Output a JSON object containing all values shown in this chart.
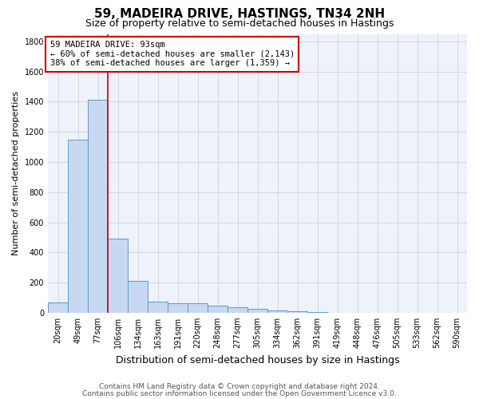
{
  "title": "59, MADEIRA DRIVE, HASTINGS, TN34 2NH",
  "subtitle": "Size of property relative to semi-detached houses in Hastings",
  "xlabel": "Distribution of semi-detached houses by size in Hastings",
  "ylabel": "Number of semi-detached properties",
  "categories": [
    "20sqm",
    "49sqm",
    "77sqm",
    "106sqm",
    "134sqm",
    "163sqm",
    "191sqm",
    "220sqm",
    "248sqm",
    "277sqm",
    "305sqm",
    "334sqm",
    "362sqm",
    "391sqm",
    "419sqm",
    "448sqm",
    "476sqm",
    "505sqm",
    "533sqm",
    "562sqm",
    "590sqm"
  ],
  "values": [
    70,
    1150,
    1415,
    490,
    210,
    75,
    62,
    60,
    48,
    35,
    25,
    15,
    10,
    5,
    0,
    0,
    0,
    0,
    0,
    0,
    0
  ],
  "bar_color": "#c6d9f0",
  "bar_edge_color": "#5b9bd5",
  "grid_color": "#d0d8e8",
  "background_color": "#eef2fa",
  "vline_bin_index": 2,
  "annotation_line1": "59 MADEIRA DRIVE: 93sqm",
  "annotation_line2": "← 60% of semi-detached houses are smaller (2,143)",
  "annotation_line3": "38% of semi-detached houses are larger (1,359) →",
  "annotation_box_color": "#ffffff",
  "annotation_box_edge_color": "#cc0000",
  "vline_color": "#cc0000",
  "ylim": [
    0,
    1850
  ],
  "yticks": [
    0,
    200,
    400,
    600,
    800,
    1000,
    1200,
    1400,
    1600,
    1800
  ],
  "footer_line1": "Contains HM Land Registry data © Crown copyright and database right 2024.",
  "footer_line2": "Contains public sector information licensed under the Open Government Licence v3.0.",
  "title_fontsize": 11,
  "subtitle_fontsize": 9,
  "xlabel_fontsize": 9,
  "ylabel_fontsize": 8,
  "tick_fontsize": 7,
  "annotation_fontsize": 7.5,
  "footer_fontsize": 6.5
}
